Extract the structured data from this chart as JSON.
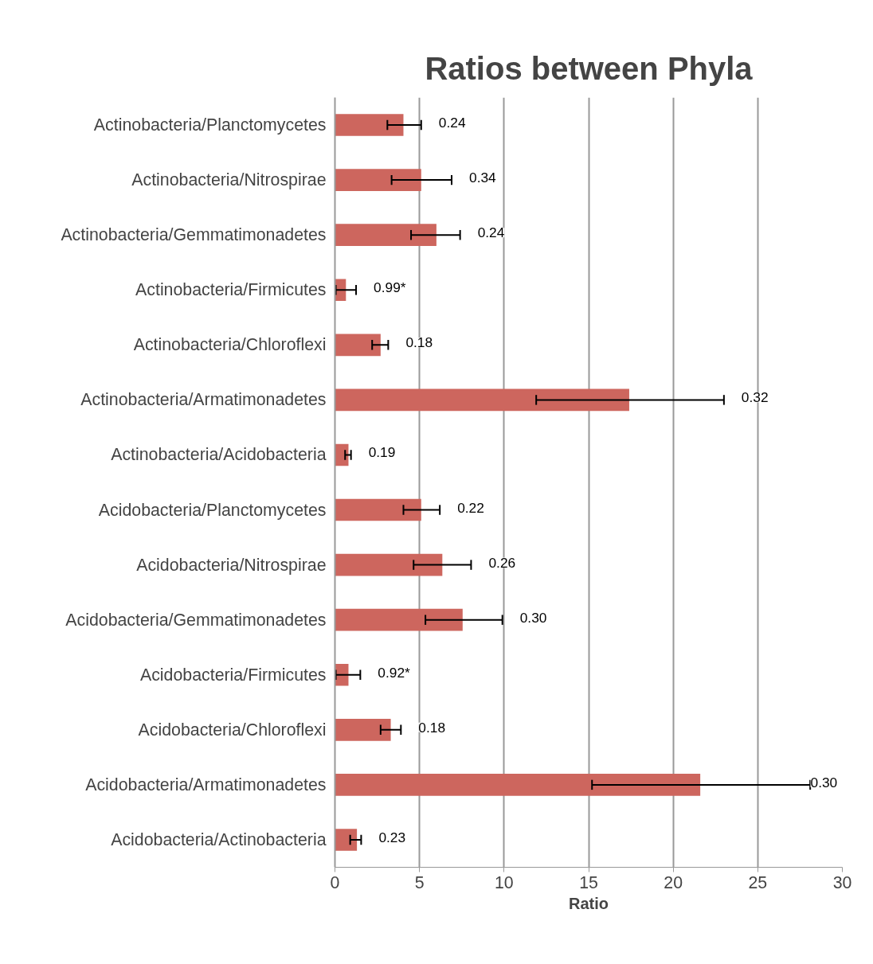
{
  "chart_data": {
    "type": "bar",
    "orientation": "horizontal",
    "title": "Ratios between Phyla",
    "xlabel": "Ratio",
    "categories": [
      "Actinobacteria/Planctomycetes",
      "Actinobacteria/Nitrospirae",
      "Actinobacteria/Gemmatimonadetes",
      "Actinobacteria/Firmicutes",
      "Actinobacteria/Chloroflexi",
      "Actinobacteria/Armatimonadetes",
      "Actinobacteria/Acidobacteria",
      "Acidobacteria/Planctomycetes",
      "Acidobacteria/Nitrospirae",
      "Acidobacteria/Gemmatimonadetes",
      "Acidobacteria/Firmicutes",
      "Acidobacteria/Chloroflexi",
      "Acidobacteria/Armatimonadetes",
      "Acidobacteria/Actinobacteria"
    ],
    "values": [
      4.05,
      5.1,
      6.0,
      0.65,
      2.7,
      17.4,
      0.8,
      5.1,
      6.35,
      7.55,
      0.8,
      3.3,
      21.6,
      1.3
    ],
    "errors": [
      [
        3.1,
        5.1
      ],
      [
        3.35,
        6.9
      ],
      [
        4.5,
        7.4
      ],
      [
        0.05,
        1.25
      ],
      [
        2.2,
        3.15
      ],
      [
        11.9,
        23.0
      ],
      [
        0.6,
        0.95
      ],
      [
        4.05,
        6.2
      ],
      [
        4.65,
        8.05
      ],
      [
        5.35,
        9.9
      ],
      [
        0.05,
        1.5
      ],
      [
        2.7,
        3.9
      ],
      [
        15.2,
        28.1
      ],
      [
        0.9,
        1.55
      ]
    ],
    "color": "#cd665e",
    "xlim": [
      0,
      30
    ],
    "xticks": [
      0,
      5,
      10,
      15,
      20,
      25,
      30
    ],
    "grid": "x",
    "annotations": [
      "0.24",
      "0.34",
      "0.24",
      "0.99*",
      "0.18",
      "0.32",
      "0.19",
      "0.22",
      "0.26",
      "0.30",
      "0.92*",
      "0.18",
      "0.30",
      "0.23"
    ]
  }
}
